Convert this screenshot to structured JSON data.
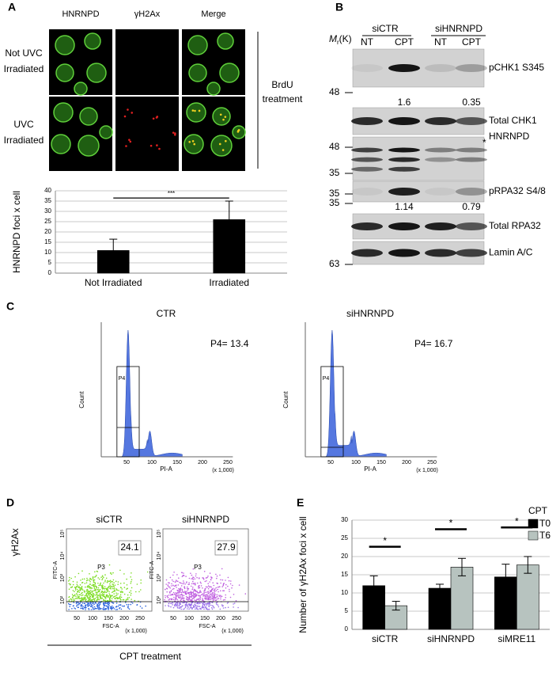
{
  "panel_labels": [
    "A",
    "B",
    "C",
    "D",
    "E"
  ],
  "panel_a": {
    "column_headers": [
      "HNRNPD",
      "γH2Ax",
      "Merge"
    ],
    "row_labels": [
      [
        "Not UVC",
        "Irradiated"
      ],
      [
        "UVC",
        "Irradiated"
      ]
    ],
    "side_label": [
      "BrdU",
      "treatment"
    ]
  },
  "panel_b": {
    "mw_label": {
      "symbol": "M",
      "subscript": "r",
      "unit": "(K)"
    },
    "groups": [
      "siCTR",
      "siHNRNPD"
    ],
    "lanes": [
      "NT",
      "CPT",
      "NT",
      "CPT"
    ],
    "blots": [
      {
        "label": "pCHK1 S345",
        "marker": "48"
      },
      {
        "label": "Total CHK1",
        "marker": "48"
      },
      {
        "label": "HNRNPD",
        "marker": "35",
        "note": "*"
      },
      {
        "label": "pRPA32 S4/8",
        "marker": "35"
      },
      {
        "label": "Total RPA32",
        "marker": "35"
      },
      {
        "label": "Lamin A/C",
        "marker": "63"
      }
    ],
    "quantifications": [
      [
        "1.6",
        "0.35"
      ],
      [
        "1.14",
        "0.79"
      ]
    ]
  },
  "panel_c": {
    "plots": [
      {
        "title": "CTR",
        "gate": "P4",
        "result": "P4= 13.4"
      },
      {
        "title": "siHNRNPD",
        "gate": "P4",
        "result": "P4= 16.7"
      }
    ],
    "y_label": "Count",
    "x_label": "PI-A",
    "x_unit": "(x 1,000)",
    "x_ticks": [
      "50",
      "100",
      "150",
      "200",
      "250"
    ]
  },
  "panel_d": {
    "y_label": "γH2Ax",
    "plots": [
      {
        "title": "siCTR",
        "gate": "P3",
        "result": "24.1"
      },
      {
        "title": "siHNRNPD",
        "gate": "P3",
        "result": "27.9"
      }
    ],
    "plot_y_label": "FITC-A",
    "plot_x_label": "FSC-A",
    "x_unit": "(x 1,000)",
    "x_ticks": [
      "50",
      "100",
      "150",
      "200",
      "250"
    ],
    "y_ticks": [
      "10²",
      "10³",
      "10⁴",
      "10⁵"
    ],
    "treatment": "CPT treatment"
  },
  "chart_data": [
    {
      "type": "bar",
      "y_label": "HNRNPD foci x cell",
      "categories": [
        "Not Irradiated",
        "Irradiated"
      ],
      "values": [
        11,
        26
      ],
      "errors": [
        5.5,
        9
      ],
      "color": "#000000",
      "ylim": [
        0,
        40
      ],
      "yticks": [
        0,
        5,
        10,
        15,
        20,
        25,
        30,
        35,
        40
      ],
      "grid": true,
      "annotations": [
        "***"
      ]
    },
    {
      "type": "grouped_bar",
      "y_label": "Number of γH2Ax foci x cell",
      "legend_title": "CPT",
      "categories": [
        "siCTR",
        "siHNRNPD",
        "siMRE11"
      ],
      "series": [
        {
          "name": "T0",
          "color": "#000000",
          "values": [
            12,
            11.3,
            14.4
          ],
          "errors": [
            2.7,
            1.1,
            3.5
          ]
        },
        {
          "name": "T6",
          "color": "#b7c3bf",
          "values": [
            6.5,
            17.1,
            17.7
          ],
          "errors": [
            1.2,
            2.4,
            2.3
          ]
        }
      ],
      "ylim": [
        0,
        30
      ],
      "yticks": [
        0,
        5,
        10,
        15,
        20,
        25,
        30
      ],
      "grid": true,
      "annotations": [
        "*",
        "*",
        "*"
      ]
    }
  ]
}
